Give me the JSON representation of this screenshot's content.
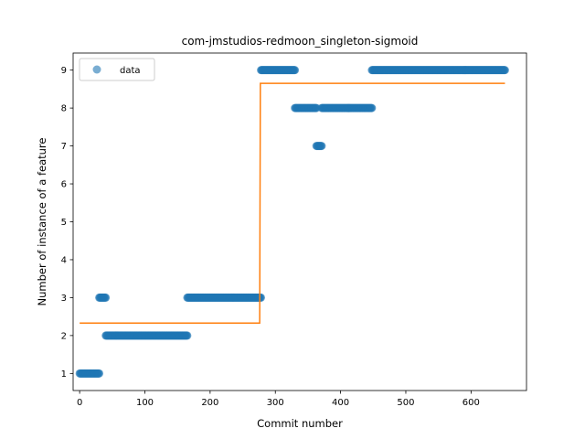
{
  "chart_data": {
    "type": "scatter",
    "title": "com-jmstudios-redmoon_singleton-sigmoid",
    "xlabel": "Commit number",
    "ylabel": "Number of instance of a feature",
    "xlim": [
      -10,
      685
    ],
    "ylim": [
      0.55,
      9.45
    ],
    "xticks": [
      0,
      100,
      200,
      300,
      400,
      500,
      600
    ],
    "yticks": [
      1,
      2,
      3,
      4,
      5,
      6,
      7,
      8,
      9
    ],
    "legend": {
      "placement": "top-left",
      "entries": [
        "data"
      ]
    },
    "grid": false,
    "colors": {
      "data": "#1f77b4",
      "fit": "#ff7f0e"
    },
    "series": [
      {
        "name": "data",
        "kind": "scatter",
        "segments": [
          {
            "x_start": 0,
            "x_end": 30,
            "y": 1
          },
          {
            "x_start": 30,
            "x_end": 40,
            "y": 3
          },
          {
            "x_start": 40,
            "x_end": 165,
            "y": 2
          },
          {
            "x_start": 165,
            "x_end": 278,
            "y": 3
          },
          {
            "x_start": 278,
            "x_end": 330,
            "y": 9
          },
          {
            "x_start": 330,
            "x_end": 363,
            "y": 8
          },
          {
            "x_start": 363,
            "x_end": 371,
            "y": 7
          },
          {
            "x_start": 371,
            "x_end": 448,
            "y": 8
          },
          {
            "x_start": 448,
            "x_end": 652,
            "y": 9
          }
        ]
      },
      {
        "kind": "line",
        "x": [
          0,
          276,
          277,
          652
        ],
        "y": [
          2.33,
          2.33,
          8.65,
          8.65
        ]
      }
    ]
  }
}
